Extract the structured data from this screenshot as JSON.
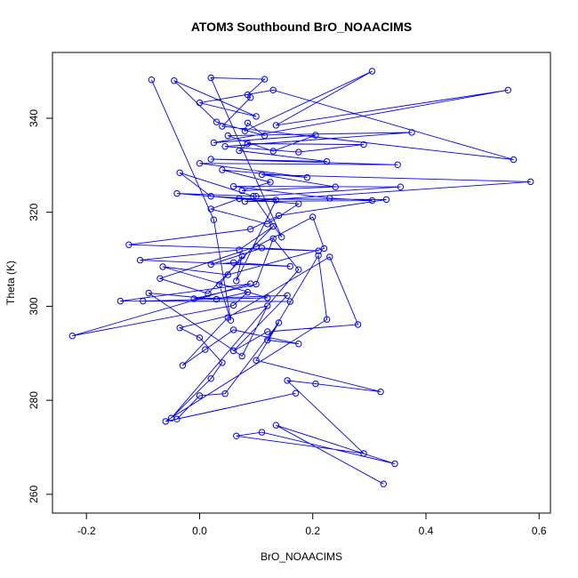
{
  "chart_data": {
    "type": "line",
    "title": "ATOM3 Southbound BrO_NOAACIMS",
    "xlabel": "BrO_NOAACIMS",
    "ylabel": "Theta (K)",
    "xlim": [
      -0.26,
      0.62
    ],
    "ylim": [
      256,
      354
    ],
    "xticks": [
      -0.2,
      0.0,
      0.2,
      0.4,
      0.6
    ],
    "xtick_labels": [
      "-0.2",
      "0.0",
      "0.2",
      "0.4",
      "0.6"
    ],
    "yticks": [
      260,
      280,
      300,
      320,
      340
    ],
    "ytick_labels": [
      "260",
      "280",
      "300",
      "320",
      "340"
    ],
    "grid": false,
    "series_color": "#0000ff",
    "marker": "open-circle",
    "series": [
      {
        "x": [
          0.325,
          0.135,
          0.345,
          0.11,
          0.065,
          0.29,
          0.155,
          0.205,
          0.32,
          0.1,
          0.14,
          0.045,
          0.0,
          -0.04,
          0.17,
          -0.06,
          0.225,
          0.21,
          0.12,
          0.175,
          0.06,
          0.01,
          -0.03,
          0.05,
          0.23,
          0.28,
          0.12,
          0.06,
          0.155,
          -0.01,
          0.1,
          0.13,
          0.175,
          -0.05,
          0.02,
          0.04,
          0.0,
          -0.035,
          0.12,
          0.075,
          -0.09,
          0.03,
          0.085,
          0.06,
          -0.225,
          0.09,
          -0.14,
          0.16,
          -0.1,
          0.12,
          -0.065,
          0.05,
          0.22,
          0.2,
          0.1,
          -0.07,
          0.015,
          0.13,
          0.07,
          -0.105,
          0.16,
          0.06,
          0.02,
          0.11,
          0.21,
          -0.125,
          0.09,
          0.14,
          0.33,
          0.07,
          0.02,
          0.12,
          0.175,
          -0.04,
          0.1,
          0.355,
          0.06,
          0.23,
          0.305,
          0.08,
          0.585,
          0.11,
          0.24,
          0.075,
          0.125,
          0.04,
          0.19,
          0.0,
          0.35,
          0.02,
          0.225,
          0.07,
          0.085,
          0.29,
          0.175,
          0.045,
          0.375,
          0.05,
          0.13,
          0.205,
          0.025,
          0.545,
          0.135,
          0.305,
          0.08,
          0.085,
          0.115,
          0.03,
          -0.045,
          0.1,
          0.0,
          0.13,
          0.555,
          0.04,
          0.09,
          0.085,
          0.115,
          0.02,
          0.145,
          0.095,
          -0.035,
          0.02,
          0.135,
          0.065,
          0.075,
          0.035,
          0.055,
          0.025,
          -0.085
        ],
        "y": [
          262.2,
          274.7,
          266.5,
          273.2,
          272.4,
          268.7,
          284.2,
          283.5,
          281.8,
          288.5,
          296.5,
          281.4,
          281.0,
          276.0,
          281.5,
          275.5,
          297.2,
          310.8,
          292.8,
          292.0,
          295.0,
          290.8,
          287.4,
          297.6,
          310.5,
          296.1,
          294.6,
          290.5,
          302.3,
          301.6,
          304.7,
          314.4,
          307.8,
          276.2,
          284.6,
          288.0,
          293.3,
          295.4,
          300.1,
          289.4,
          302.8,
          301.5,
          303.0,
          300.2,
          293.7,
          304.8,
          301.1,
          301.0,
          301.1,
          301.8,
          308.4,
          306.7,
          312.3,
          319.0,
          312.7,
          305.9,
          302.7,
          317.0,
          312.0,
          309.8,
          308.5,
          309.3,
          308.9,
          312.4,
          311.8,
          313.1,
          316.4,
          319.3,
          322.7,
          322.9,
          320.7,
          317.5,
          321.8,
          324.0,
          323.4,
          325.4,
          325.5,
          323.0,
          322.5,
          322.3,
          326.5,
          328.0,
          325.4,
          324.6,
          326.4,
          329.0,
          327.4,
          330.4,
          330.1,
          331.3,
          330.8,
          333.1,
          334.6,
          334.4,
          332.8,
          334.0,
          337.0,
          336.3,
          333.0,
          336.4,
          334.8,
          346.0,
          338.5,
          350.0,
          337.3,
          339.0,
          336.3,
          339.2,
          348.0,
          340.4,
          343.3,
          346.0,
          331.2,
          338.3,
          344.4,
          345.0,
          348.3,
          348.6,
          314.7,
          323.4,
          328.4,
          323.4,
          322.6,
          305.4,
          310.7,
          304.6,
          297.0,
          318.4,
          348.2
        ]
      }
    ]
  }
}
